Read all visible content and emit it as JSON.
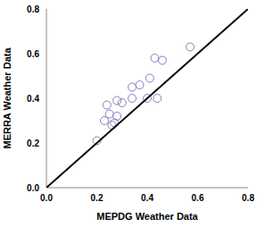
{
  "chart_data": {
    "type": "scatter",
    "x_label": "MEPDG Weather Data",
    "y_label": "MERRA Weather Data",
    "xlim": [
      0,
      0.8
    ],
    "ylim": [
      0,
      0.8
    ],
    "xticks": [
      {
        "value": 0,
        "label": "0.0"
      },
      0.2,
      0.4,
      0.6,
      0.8
    ],
    "yticks": [
      {
        "value": 0,
        "label": "0.0"
      },
      0.2,
      0.4,
      0.6,
      0.8
    ],
    "grid": false,
    "series": [
      {
        "type": "scatter",
        "color": "#8080c0",
        "marker": "circle_open",
        "x": [
          0.2,
          0.23,
          0.24,
          0.25,
          0.26,
          0.27,
          0.28,
          0.28,
          0.3,
          0.34,
          0.34,
          0.37,
          0.4,
          0.41,
          0.43,
          0.44,
          0.46,
          0.57
        ],
        "values": [
          0.21,
          0.3,
          0.37,
          0.33,
          0.28,
          0.29,
          0.32,
          0.39,
          0.38,
          0.4,
          0.45,
          0.46,
          0.4,
          0.49,
          0.58,
          0.4,
          0.57,
          0.63
        ]
      },
      {
        "type": "line",
        "color": "#000000",
        "line_style": "solid",
        "x": [
          0,
          0.8
        ],
        "values": [
          0,
          0.8
        ]
      }
    ]
  }
}
